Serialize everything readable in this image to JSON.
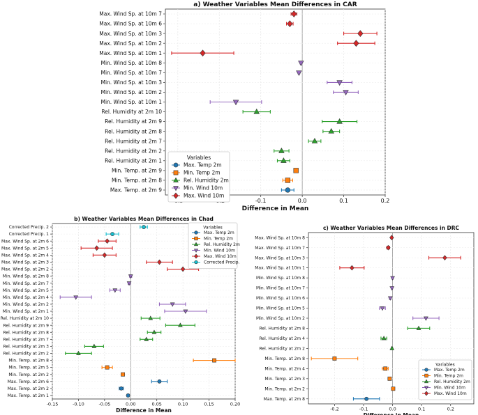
{
  "colors": {
    "max_temp": "#1f77b4",
    "min_temp": "#ff7f0e",
    "rel_hum": "#2ca02c",
    "min_wind": "#9467bd",
    "max_wind": "#d62728",
    "corr_precip": "#17becf"
  },
  "chart_data": [
    {
      "type": "scatter",
      "title": "a) Weather Variables Mean Differences in CAR",
      "xlabel": "Difference in Mean",
      "ylabel": "",
      "xlim": [
        -0.33,
        0.2
      ],
      "xticks": [
        "-0.3",
        "-0.2",
        "-0.1",
        "0.0",
        "0.1",
        "0.2"
      ],
      "grid": true,
      "legend": {
        "title": "Variables",
        "placement": "lower-left",
        "entries": [
          "Max. Temp 2m",
          "Min. Temp 2m",
          "Rel. Humidity 2m",
          "Min. Wind 10m",
          "Max. Wind 10m"
        ]
      },
      "points": [
        {
          "label": "Max. Wind Sp. at 10m 7",
          "series": "max_wind",
          "value": -0.02,
          "err": 0.007
        },
        {
          "label": "Max. Wind Sp. at 10m 6",
          "series": "max_wind",
          "value": -0.03,
          "err": 0.008
        },
        {
          "label": "Max. Wind Sp. at 10m 3",
          "series": "max_wind",
          "value": 0.14,
          "err": 0.04
        },
        {
          "label": "Max. Wind Sp. at 10m 2",
          "series": "max_wind",
          "value": 0.13,
          "err": 0.045
        },
        {
          "label": "Max. Wind Sp. at 10m 1",
          "series": "max_wind",
          "value": -0.24,
          "err": 0.075
        },
        {
          "label": "Min. Wind Sp. at 10m 8",
          "series": "min_wind",
          "value": -0.003,
          "err": 0.002
        },
        {
          "label": "Min. Wind Sp. at 10m 7",
          "series": "min_wind",
          "value": -0.008,
          "err": 0.002
        },
        {
          "label": "Min. Wind Sp. at 10m 3",
          "series": "min_wind",
          "value": 0.09,
          "err": 0.03
        },
        {
          "label": "Min. Wind Sp. at 10m 2",
          "series": "min_wind",
          "value": 0.105,
          "err": 0.03
        },
        {
          "label": "Min. Wind Sp. at 10m 1",
          "series": "min_wind",
          "value": -0.16,
          "err": 0.062
        },
        {
          "label": "Rel. Humidity at 2m 10",
          "series": "rel_hum",
          "value": -0.11,
          "err": 0.033
        },
        {
          "label": "Rel. Humidity at 2m 9",
          "series": "rel_hum",
          "value": 0.09,
          "err": 0.042
        },
        {
          "label": "Rel. Humidity at 2m 8",
          "series": "rel_hum",
          "value": 0.07,
          "err": 0.02
        },
        {
          "label": "Rel. Humidity at 2m 7",
          "series": "rel_hum",
          "value": 0.03,
          "err": 0.015
        },
        {
          "label": "Rel. Humidity at 2m 2",
          "series": "rel_hum",
          "value": -0.05,
          "err": 0.018
        },
        {
          "label": "Rel. Humidity at 2m 1",
          "series": "rel_hum",
          "value": -0.045,
          "err": 0.015
        },
        {
          "label": "Min. Temp. at 2m 9",
          "series": "min_temp",
          "value": -0.015,
          "err": 0.004
        },
        {
          "label": "Min. Temp. at 2m 8",
          "series": "min_temp",
          "value": -0.035,
          "err": 0.012
        },
        {
          "label": "Max. Temp. at 2m 9",
          "series": "max_temp",
          "value": -0.035,
          "err": 0.015
        }
      ]
    },
    {
      "type": "scatter",
      "title": "b) Weather Variables Mean Differences in Chad",
      "xlabel": "Difference in Mean",
      "ylabel": "",
      "xlim": [
        -0.15,
        0.2
      ],
      "xticks": [
        "-0.15",
        "-0.10",
        "-0.05",
        "0.00",
        "0.05",
        "0.10",
        "0.15",
        "0.20"
      ],
      "grid": true,
      "legend": {
        "title": "Variables",
        "placement": "upper-right",
        "entries": [
          "Max. Temp 2m",
          "Min. Temp 2m",
          "Rel. Humidity 2m",
          "Min. Wind 10m",
          "Max. Wind 10m",
          "Corrected Precip."
        ]
      },
      "points": [
        {
          "label": "Corrected Precip. 2",
          "series": "corr_precip",
          "value": 0.025,
          "err": 0.007
        },
        {
          "label": "Corrected Precip. 1",
          "series": "corr_precip",
          "value": -0.035,
          "err": 0.012
        },
        {
          "label": "Max. Wind Sp. at 2m 6",
          "series": "max_wind",
          "value": -0.045,
          "err": 0.017
        },
        {
          "label": "Max. Wind Sp. at 2m 5",
          "series": "max_wind",
          "value": -0.065,
          "err": 0.03
        },
        {
          "label": "Max. Wind Sp. at 2m 4",
          "series": "max_wind",
          "value": -0.05,
          "err": 0.022
        },
        {
          "label": "Max. Wind Sp. at 2m 3",
          "series": "max_wind",
          "value": 0.055,
          "err": 0.025
        },
        {
          "label": "Max. Wind Sp. at 2m 2",
          "series": "max_wind",
          "value": 0.1,
          "err": 0.03
        },
        {
          "label": "Min. Wind Sp. at 2m 8",
          "series": "min_wind",
          "value": 0.0,
          "err": 0.002
        },
        {
          "label": "Min. Wind Sp. at 2m 7",
          "series": "min_wind",
          "value": -0.003,
          "err": 0.002
        },
        {
          "label": "Min. Wind Sp. at 2m 5",
          "series": "min_wind",
          "value": -0.03,
          "err": 0.01
        },
        {
          "label": "Min. Wind Sp. at 2m 4",
          "series": "min_wind",
          "value": -0.105,
          "err": 0.03
        },
        {
          "label": "Min. Wind Sp. at 2m 2",
          "series": "min_wind",
          "value": 0.08,
          "err": 0.025
        },
        {
          "label": "Min. Wind Sp. at 2m 1",
          "series": "min_wind",
          "value": 0.105,
          "err": 0.04
        },
        {
          "label": "Rel. Humidity at 2m 10",
          "series": "rel_hum",
          "value": 0.038,
          "err": 0.018
        },
        {
          "label": "Rel. Humidity at 2m 9",
          "series": "rel_hum",
          "value": 0.095,
          "err": 0.028
        },
        {
          "label": "Rel. Humidity at 2m 8",
          "series": "rel_hum",
          "value": 0.045,
          "err": 0.013
        },
        {
          "label": "Rel. Humidity at 2m 7",
          "series": "rel_hum",
          "value": 0.03,
          "err": 0.012
        },
        {
          "label": "Rel. Humidity at 2m 3",
          "series": "rel_hum",
          "value": -0.07,
          "err": 0.018
        },
        {
          "label": "Rel. Humidity at 2m 2",
          "series": "rel_hum",
          "value": -0.1,
          "err": 0.025
        },
        {
          "label": "Min. Temp. at 2m 8",
          "series": "min_temp",
          "value": 0.16,
          "err": 0.04
        },
        {
          "label": "Min. Temp. at 2m 5",
          "series": "min_temp",
          "value": -0.045,
          "err": 0.01
        },
        {
          "label": "Min. Temp. at 2m 2",
          "series": "min_temp",
          "value": -0.015,
          "err": 0.003
        },
        {
          "label": "Max. Temp. at 2m 6",
          "series": "max_temp",
          "value": 0.055,
          "err": 0.015
        },
        {
          "label": "Max. Temp. at 2m 2",
          "series": "max_temp",
          "value": -0.018,
          "err": 0.004
        },
        {
          "label": "Max. Temp. at 2m 1",
          "series": "max_temp",
          "value": -0.005,
          "err": 0.002
        }
      ]
    },
    {
      "type": "scatter",
      "title": "c) Weather Variables Mean Differences in DRC",
      "xlabel": "Difference in Mean",
      "ylabel": "",
      "xlim": [
        -0.29,
        0.28
      ],
      "xticks": [
        "-0.2",
        "-0.1",
        "0.0",
        "0.1",
        "0.2"
      ],
      "grid": true,
      "legend": {
        "title": "Variables",
        "placement": "lower-right",
        "entries": [
          "Max. Temp 2m",
          "Min. Temp 2m",
          "Rel. Humidity 2m",
          "Min. Wind 10m",
          "Max. Wind 10m"
        ]
      },
      "points": [
        {
          "label": "Max. Wind Sp. at 10m 8",
          "series": "max_wind",
          "value": -0.003,
          "err": 0.002
        },
        {
          "label": "Max. Wind Sp. at 10m 7",
          "series": "max_wind",
          "value": -0.015,
          "err": 0.005
        },
        {
          "label": "Max. Wind Sp. at 10m 3",
          "series": "max_wind",
          "value": 0.18,
          "err": 0.055
        },
        {
          "label": "Max. Wind Sp. at 10m 1",
          "series": "max_wind",
          "value": -0.14,
          "err": 0.042
        },
        {
          "label": "Min. Wind Sp. at 10m 8",
          "series": "min_wind",
          "value": 0.0,
          "err": 0.002
        },
        {
          "label": "Min. Wind Sp. at 10m 7",
          "series": "min_wind",
          "value": -0.002,
          "err": 0.002
        },
        {
          "label": "Min. Wind Sp. at 10m 6",
          "series": "min_wind",
          "value": -0.008,
          "err": 0.003
        },
        {
          "label": "Min. Wind Sp. at 10m 5",
          "series": "min_wind",
          "value": -0.035,
          "err": 0.01
        },
        {
          "label": "Min. Wind Sp. at 10m 2",
          "series": "min_wind",
          "value": 0.115,
          "err": 0.045
        },
        {
          "label": "Rel. Humidity at 2m 8",
          "series": "rel_hum",
          "value": 0.09,
          "err": 0.038
        },
        {
          "label": "Rel. Humidity at 2m 4",
          "series": "rel_hum",
          "value": -0.03,
          "err": 0.01
        },
        {
          "label": "Rel. Humidity at 2m 2",
          "series": "rel_hum",
          "value": -0.002,
          "err": 0.002
        },
        {
          "label": "Min. Temp. at 2m 8",
          "series": "min_temp",
          "value": -0.2,
          "err": 0.08
        },
        {
          "label": "Min. Temp. at 2m 4",
          "series": "min_temp",
          "value": -0.025,
          "err": 0.01
        },
        {
          "label": "Min. Temp. at 2m 3",
          "series": "min_temp",
          "value": -0.01,
          "err": 0.003
        },
        {
          "label": "Min. Temp. at 2m 2",
          "series": "min_temp",
          "value": 0.002,
          "err": 0.002
        },
        {
          "label": "Max. Temp. at 2m 8",
          "series": "max_temp",
          "value": -0.09,
          "err": 0.045
        }
      ]
    }
  ]
}
